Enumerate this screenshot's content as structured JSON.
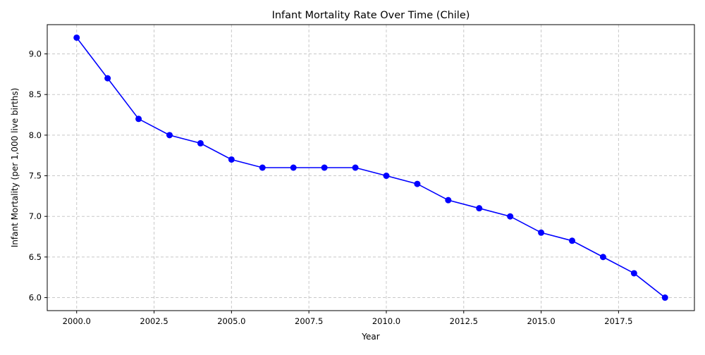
{
  "chart_data": {
    "type": "line",
    "title": "Infant Mortality Rate Over Time (Chile)",
    "xlabel": "Year",
    "ylabel": "Infant Mortality (per 1,000 live births)",
    "x": [
      2000,
      2001,
      2002,
      2003,
      2004,
      2005,
      2006,
      2007,
      2008,
      2009,
      2010,
      2011,
      2012,
      2013,
      2014,
      2015,
      2016,
      2017,
      2018,
      2019
    ],
    "series": [
      {
        "values": [
          9.2,
          8.7,
          8.2,
          8.0,
          7.9,
          7.7,
          7.6,
          7.6,
          7.6,
          7.6,
          7.5,
          7.4,
          7.2,
          7.1,
          7.0,
          6.8,
          6.7,
          6.5,
          6.3,
          6.0
        ],
        "color": "#0000ff",
        "marker": "circle"
      }
    ],
    "xticks": [
      "2000.0",
      "2002.5",
      "2005.0",
      "2007.5",
      "2010.0",
      "2012.5",
      "2015.0",
      "2017.5"
    ],
    "yticks": [
      "6.0",
      "6.5",
      "7.0",
      "7.5",
      "8.0",
      "8.5",
      "9.0"
    ],
    "xlim": [
      1999.05,
      2019.95
    ],
    "ylim": [
      5.84,
      9.36
    ],
    "grid": true,
    "grid_style": "dashed"
  }
}
